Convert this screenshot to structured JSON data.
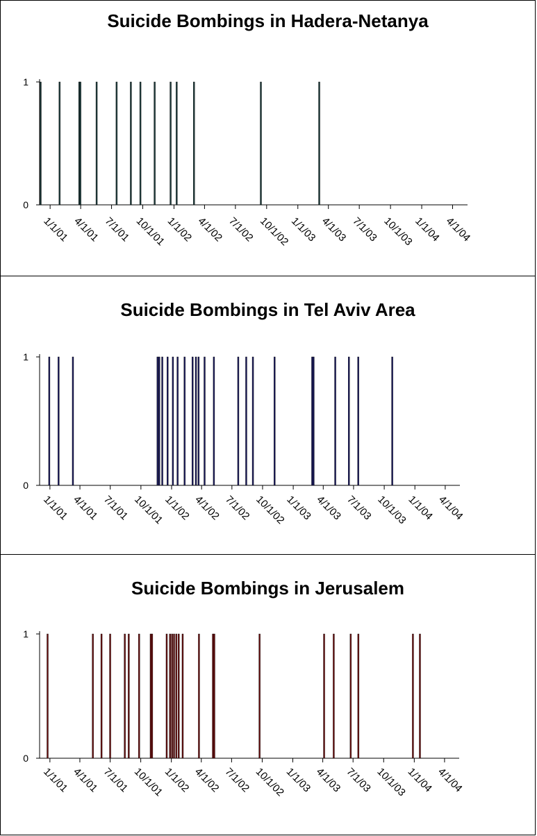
{
  "chart_data": [
    {
      "type": "bar",
      "title": "Suicide Bombings in Hadera-Netanya",
      "xlabel": "",
      "ylabel": "",
      "ylim": [
        0,
        1
      ],
      "yticks": [
        "0",
        "1"
      ],
      "xlim": [
        "2000-12-01",
        "2004-05-15"
      ],
      "xticks": [
        "1/1/01",
        "4/1/01",
        "7/1/01",
        "10/1/01",
        "1/1/02",
        "4/1/02",
        "7/1/02",
        "10/1/02",
        "1/1/03",
        "4/1/03",
        "7/1/03",
        "10/1/03",
        "1/1/04",
        "4/1/04"
      ],
      "color": "#1f3d3d",
      "events": [
        "2000-12-04",
        "2001-01-29",
        "2001-03-28",
        "2001-03-31",
        "2001-05-18",
        "2001-07-16",
        "2001-08-27",
        "2001-09-24",
        "2001-11-05",
        "2001-12-22",
        "2002-01-09",
        "2002-03-01",
        "2002-09-14",
        "2003-03-05"
      ]
    },
    {
      "type": "bar",
      "title": "Suicide Bombings in Tel Aviv Area",
      "xlabel": "",
      "ylabel": "",
      "ylim": [
        0,
        1
      ],
      "yticks": [
        "0",
        "1"
      ],
      "xlim": [
        "2000-12-01",
        "2004-05-15"
      ],
      "xticks": [
        "1/1/01",
        "4/1/01",
        "7/1/01",
        "10/1/01",
        "1/1/02",
        "4/1/02",
        "7/1/02",
        "10/1/02",
        "1/1/03",
        "4/1/03",
        "7/1/03",
        "10/1/03",
        "1/1/04",
        "4/1/04"
      ],
      "color": "#1b1b5e",
      "events": [
        "2000-12-30",
        "2001-01-27",
        "2001-03-11",
        "2001-11-20",
        "2001-11-25",
        "2001-12-04",
        "2001-12-20",
        "2002-01-05",
        "2002-01-19",
        "2002-02-09",
        "2002-03-05",
        "2002-03-15",
        "2002-03-23",
        "2002-04-10",
        "2002-05-08",
        "2002-07-20",
        "2002-08-13",
        "2002-09-02",
        "2002-11-06",
        "2003-02-27",
        "2003-03-03",
        "2003-05-07",
        "2003-06-17",
        "2003-07-15",
        "2003-10-25"
      ]
    },
    {
      "type": "bar",
      "title": "Suicide Bombings in Jerusalem",
      "xlabel": "",
      "ylabel": "",
      "ylim": [
        0,
        1
      ],
      "yticks": [
        "0",
        "1"
      ],
      "xlim": [
        "2000-12-01",
        "2004-05-15"
      ],
      "xticks": [
        "1/1/01",
        "4/1/01",
        "7/1/01",
        "10/1/01",
        "1/1/02",
        "4/1/02",
        "7/1/02",
        "10/1/02",
        "1/1/03",
        "4/1/03",
        "7/1/03",
        "10/1/03",
        "1/1/04",
        "4/1/04"
      ],
      "color": "#6b1010",
      "events": [
        "2000-12-25",
        "2001-05-10",
        "2001-06-05",
        "2001-07-01",
        "2001-08-14",
        "2001-08-26",
        "2001-09-26",
        "2001-10-31",
        "2001-11-04",
        "2001-12-18",
        "2001-12-28",
        "2002-01-03",
        "2002-01-09",
        "2002-01-16",
        "2002-01-23",
        "2002-02-04",
        "2002-03-25",
        "2002-05-06",
        "2002-05-10",
        "2002-09-23",
        "2003-04-05",
        "2003-05-04",
        "2003-06-24",
        "2003-07-17",
        "2003-12-28",
        "2004-01-18"
      ]
    }
  ]
}
